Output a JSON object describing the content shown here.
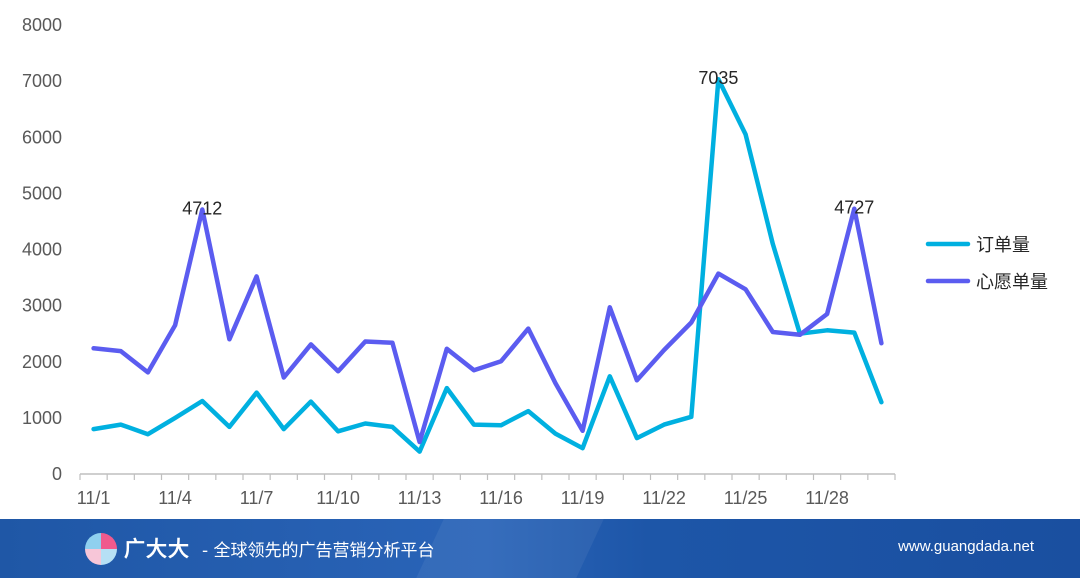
{
  "chart_data": {
    "type": "line",
    "title": "",
    "xlabel": "",
    "ylabel": "",
    "ylim": [
      0,
      8000
    ],
    "yticks": [
      0,
      1000,
      2000,
      3000,
      4000,
      5000,
      6000,
      7000,
      8000
    ],
    "categories": [
      "11/1",
      "11/2",
      "11/3",
      "11/4",
      "11/5",
      "11/6",
      "11/7",
      "11/8",
      "11/9",
      "11/10",
      "11/11",
      "11/12",
      "11/13",
      "11/14",
      "11/15",
      "11/16",
      "11/17",
      "11/18",
      "11/19",
      "11/20",
      "11/21",
      "11/22",
      "11/23",
      "11/24",
      "11/25",
      "11/26",
      "11/27",
      "11/28",
      "11/29",
      "11/30"
    ],
    "xtick_labels": [
      "11/1",
      "11/4",
      "11/7",
      "11/10",
      "11/13",
      "11/16",
      "11/19",
      "11/22",
      "11/25",
      "11/28"
    ],
    "series": [
      {
        "name": "订单量",
        "color": "#00b0e0",
        "values": [
          800,
          880,
          710,
          1000,
          1300,
          840,
          1450,
          800,
          1290,
          760,
          900,
          840,
          400,
          1530,
          880,
          870,
          1120,
          720,
          460,
          1740,
          640,
          880,
          1020,
          7035,
          6050,
          4100,
          2500,
          2560,
          2520,
          1280
        ],
        "data_labels": [
          {
            "index": 23,
            "text": "7035"
          }
        ]
      },
      {
        "name": "心愿单量",
        "color": "#5b5cf0",
        "values": [
          2240,
          2190,
          1810,
          2650,
          4712,
          2400,
          3520,
          1720,
          2310,
          1830,
          2360,
          2340,
          570,
          2230,
          1850,
          2010,
          2590,
          1620,
          770,
          2970,
          1670,
          2210,
          2700,
          3570,
          3290,
          2530,
          2480,
          2850,
          4727,
          2330
        ],
        "data_labels": [
          {
            "index": 4,
            "text": "4712"
          },
          {
            "index": 28,
            "text": "4727"
          }
        ]
      }
    ],
    "legend_position": "right",
    "grid": false
  },
  "footer": {
    "brand": "广大大",
    "tagline": "- 全球领先的广告营销分析平台",
    "url": "www.guangdada.net"
  },
  "icons": {
    "logo": "pie-logo-icon"
  }
}
